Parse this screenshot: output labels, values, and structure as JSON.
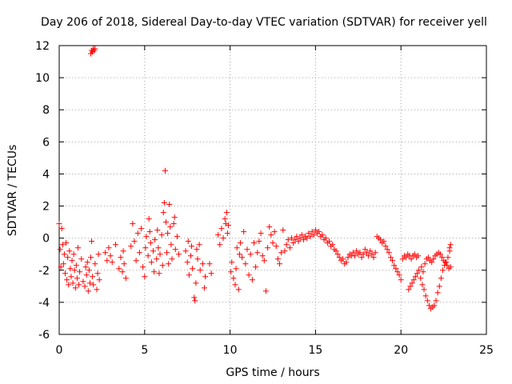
{
  "chart_data": {
    "type": "scatter",
    "title": "Day 206 of 2018, Sidereal Day-to-day VTEC variation (SDTVAR) for receiver yell",
    "xlabel": "GPS time / hours",
    "ylabel": "SDTVAR / TECUs",
    "xlim": [
      0,
      25
    ],
    "ylim": [
      -6,
      12
    ],
    "xticks": [
      0,
      5,
      10,
      15,
      20,
      25
    ],
    "yticks": [
      -6,
      -4,
      -2,
      0,
      2,
      4,
      6,
      8,
      10,
      12
    ],
    "grid": true,
    "marker": "+",
    "color": "#ff0000",
    "series": [
      {
        "name": "SDTVAR",
        "points": [
          [
            0.0,
            0.9
          ],
          [
            0.05,
            -0.7
          ],
          [
            0.1,
            -1.8
          ],
          [
            0.15,
            0.6
          ],
          [
            0.2,
            -0.4
          ],
          [
            0.25,
            -1.6
          ],
          [
            0.3,
            -1.0
          ],
          [
            0.35,
            -2.2
          ],
          [
            0.4,
            -0.3
          ],
          [
            0.45,
            -2.6
          ],
          [
            0.5,
            -1.2
          ],
          [
            0.55,
            -2.9
          ],
          [
            0.6,
            -0.8
          ],
          [
            0.65,
            -1.9
          ],
          [
            0.7,
            -2.4
          ],
          [
            0.75,
            -1.4
          ],
          [
            0.8,
            -2.8
          ],
          [
            0.85,
            -1.0
          ],
          [
            0.9,
            -2.0
          ],
          [
            0.95,
            -3.1
          ],
          [
            1.0,
            -1.7
          ],
          [
            1.05,
            -2.5
          ],
          [
            1.1,
            -0.6
          ],
          [
            1.15,
            -2.9
          ],
          [
            1.2,
            -2.1
          ],
          [
            1.3,
            -1.3
          ],
          [
            1.4,
            -2.7
          ],
          [
            1.5,
            -3.0
          ],
          [
            1.55,
            -1.8
          ],
          [
            1.6,
            -2.3
          ],
          [
            1.65,
            -1.5
          ],
          [
            1.7,
            -3.3
          ],
          [
            1.75,
            -2.0
          ],
          [
            1.8,
            -2.8
          ],
          [
            1.85,
            -1.2
          ],
          [
            1.9,
            -0.2
          ],
          [
            1.95,
            -2.4
          ],
          [
            2.0,
            -2.9
          ],
          [
            2.1,
            -1.6
          ],
          [
            2.2,
            -3.2
          ],
          [
            2.25,
            -2.2
          ],
          [
            2.3,
            -1.0
          ],
          [
            2.35,
            -2.6
          ],
          [
            1.85,
            11.5
          ],
          [
            1.9,
            11.7
          ],
          [
            1.95,
            11.6
          ],
          [
            2.0,
            11.8
          ],
          [
            2.05,
            11.7
          ],
          [
            2.1,
            11.8
          ],
          [
            2.7,
            -0.9
          ],
          [
            2.8,
            -1.4
          ],
          [
            2.9,
            -0.6
          ],
          [
            3.0,
            -1.1
          ],
          [
            3.1,
            -1.5
          ],
          [
            3.3,
            -0.4
          ],
          [
            3.5,
            -1.9
          ],
          [
            3.6,
            -1.2
          ],
          [
            3.7,
            -2.1
          ],
          [
            3.75,
            -0.8
          ],
          [
            3.8,
            -1.6
          ],
          [
            3.9,
            -2.5
          ],
          [
            4.2,
            -0.5
          ],
          [
            4.3,
            0.9
          ],
          [
            4.4,
            -0.2
          ],
          [
            4.5,
            -1.4
          ],
          [
            4.6,
            0.3
          ],
          [
            4.7,
            -0.9
          ],
          [
            4.8,
            0.6
          ],
          [
            4.9,
            -1.8
          ],
          [
            5.0,
            -2.4
          ],
          [
            5.05,
            -0.6
          ],
          [
            5.1,
            0.1
          ],
          [
            5.2,
            -1.1
          ],
          [
            5.25,
            1.2
          ],
          [
            5.3,
            0.4
          ],
          [
            5.35,
            -0.3
          ],
          [
            5.4,
            -1.5
          ],
          [
            5.5,
            -0.8
          ],
          [
            5.55,
            -2.1
          ],
          [
            5.6,
            -0.1
          ],
          [
            5.7,
            -1.3
          ],
          [
            5.75,
            0.5
          ],
          [
            5.8,
            -0.6
          ],
          [
            5.85,
            -2.2
          ],
          [
            5.9,
            -1.0
          ],
          [
            6.0,
            0.2
          ],
          [
            6.05,
            -1.7
          ],
          [
            6.1,
            1.6
          ],
          [
            6.15,
            2.2
          ],
          [
            6.2,
            4.2
          ],
          [
            6.25,
            1.0
          ],
          [
            6.3,
            -0.9
          ],
          [
            6.35,
            0.3
          ],
          [
            6.4,
            -1.6
          ],
          [
            6.45,
            2.1
          ],
          [
            6.5,
            0.7
          ],
          [
            6.55,
            -0.4
          ],
          [
            6.6,
            -1.3
          ],
          [
            6.7,
            0.9
          ],
          [
            6.75,
            1.3
          ],
          [
            6.8,
            -0.7
          ],
          [
            6.9,
            0.1
          ],
          [
            7.0,
            -1.0
          ],
          [
            7.4,
            -0.8
          ],
          [
            7.5,
            -1.5
          ],
          [
            7.55,
            -0.2
          ],
          [
            7.6,
            -2.3
          ],
          [
            7.7,
            -1.1
          ],
          [
            7.75,
            -0.5
          ],
          [
            7.8,
            -1.9
          ],
          [
            7.9,
            -3.7
          ],
          [
            7.95,
            -3.9
          ],
          [
            8.0,
            -2.8
          ],
          [
            8.05,
            -0.7
          ],
          [
            8.1,
            -1.3
          ],
          [
            8.2,
            -0.4
          ],
          [
            8.25,
            -2.0
          ],
          [
            8.4,
            -1.6
          ],
          [
            8.5,
            -3.1
          ],
          [
            8.55,
            -2.4
          ],
          [
            8.8,
            -1.6
          ],
          [
            8.9,
            -2.2
          ],
          [
            9.3,
            0.2
          ],
          [
            9.4,
            -0.4
          ],
          [
            9.5,
            0.6
          ],
          [
            9.6,
            0.0
          ],
          [
            9.7,
            1.2
          ],
          [
            9.75,
            0.9
          ],
          [
            9.8,
            1.6
          ],
          [
            9.85,
            0.3
          ],
          [
            9.9,
            0.8
          ],
          [
            10.05,
            -2.1
          ],
          [
            10.1,
            -1.5
          ],
          [
            10.2,
            -2.5
          ],
          [
            10.3,
            -2.9
          ],
          [
            10.35,
            -1.9
          ],
          [
            10.4,
            -0.6
          ],
          [
            10.5,
            -3.2
          ],
          [
            10.55,
            -1.0
          ],
          [
            10.6,
            -0.3
          ],
          [
            10.7,
            -1.2
          ],
          [
            10.8,
            0.4
          ],
          [
            10.9,
            -1.6
          ],
          [
            11.0,
            -0.7
          ],
          [
            11.1,
            -2.3
          ],
          [
            11.2,
            -1.0
          ],
          [
            11.3,
            -2.6
          ],
          [
            11.4,
            -0.3
          ],
          [
            11.5,
            -1.8
          ],
          [
            11.6,
            -0.9
          ],
          [
            11.7,
            -0.2
          ],
          [
            11.8,
            0.3
          ],
          [
            11.9,
            -1.1
          ],
          [
            12.0,
            -1.4
          ],
          [
            12.1,
            -3.3
          ],
          [
            12.2,
            -0.6
          ],
          [
            12.3,
            0.7
          ],
          [
            12.4,
            0.2
          ],
          [
            12.5,
            -0.3
          ],
          [
            12.6,
            0.4
          ],
          [
            12.7,
            -0.5
          ],
          [
            12.8,
            -1.3
          ],
          [
            12.9,
            -1.6
          ],
          [
            13.0,
            -0.9
          ],
          [
            13.1,
            0.5
          ],
          [
            13.2,
            -0.8
          ],
          [
            13.3,
            -0.4
          ],
          [
            13.4,
            -0.1
          ],
          [
            13.5,
            -0.6
          ],
          [
            13.6,
            0.0
          ],
          [
            13.7,
            -0.3
          ],
          [
            13.8,
            -0.1
          ],
          [
            13.9,
            0.1
          ],
          [
            14.0,
            -0.2
          ],
          [
            14.1,
            0.0
          ],
          [
            14.2,
            0.2
          ],
          [
            14.3,
            -0.1
          ],
          [
            14.4,
            0.1
          ],
          [
            14.5,
            0.0
          ],
          [
            14.6,
            0.3
          ],
          [
            14.7,
            0.1
          ],
          [
            14.8,
            0.4
          ],
          [
            14.9,
            0.2
          ],
          [
            15.0,
            0.5
          ],
          [
            15.1,
            0.3
          ],
          [
            15.2,
            0.4
          ],
          [
            15.3,
            0.1
          ],
          [
            15.4,
            0.2
          ],
          [
            15.5,
            -0.1
          ],
          [
            15.6,
            0.0
          ],
          [
            15.7,
            -0.3
          ],
          [
            15.8,
            -0.2
          ],
          [
            15.9,
            -0.5
          ],
          [
            16.0,
            -0.4
          ],
          [
            16.1,
            -0.7
          ],
          [
            16.2,
            -0.8
          ],
          [
            16.3,
            -1.0
          ],
          [
            16.4,
            -1.2
          ],
          [
            16.5,
            -1.4
          ],
          [
            16.6,
            -1.3
          ],
          [
            16.7,
            -1.6
          ],
          [
            16.8,
            -1.5
          ],
          [
            16.9,
            -1.2
          ],
          [
            17.0,
            -1.0
          ],
          [
            17.1,
            -1.1
          ],
          [
            17.2,
            -0.9
          ],
          [
            17.3,
            -1.1
          ],
          [
            17.4,
            -0.8
          ],
          [
            17.5,
            -1.0
          ],
          [
            17.6,
            -0.9
          ],
          [
            17.7,
            -1.2
          ],
          [
            17.8,
            -1.0
          ],
          [
            17.9,
            -0.7
          ],
          [
            18.0,
            -0.9
          ],
          [
            18.1,
            -1.1
          ],
          [
            18.2,
            -0.8
          ],
          [
            18.3,
            -1.0
          ],
          [
            18.4,
            -1.2
          ],
          [
            18.5,
            -0.9
          ],
          [
            18.6,
            0.1
          ],
          [
            18.7,
            0.0
          ],
          [
            18.8,
            -0.1
          ],
          [
            18.9,
            -0.3
          ],
          [
            19.0,
            -0.2
          ],
          [
            19.1,
            -0.5
          ],
          [
            19.2,
            -0.7
          ],
          [
            19.3,
            -0.9
          ],
          [
            19.4,
            -1.2
          ],
          [
            19.5,
            -1.4
          ],
          [
            19.6,
            -1.7
          ],
          [
            19.7,
            -1.9
          ],
          [
            19.8,
            -2.1
          ],
          [
            19.9,
            -2.3
          ],
          [
            20.0,
            -2.6
          ],
          [
            20.1,
            -1.3
          ],
          [
            20.2,
            -1.1
          ],
          [
            20.3,
            -1.2
          ],
          [
            20.4,
            -1.0
          ],
          [
            20.5,
            -1.1
          ],
          [
            20.6,
            -1.3
          ],
          [
            20.7,
            -1.1
          ],
          [
            20.8,
            -1.0
          ],
          [
            20.9,
            -1.2
          ],
          [
            21.0,
            -1.1
          ],
          [
            20.45,
            -3.2
          ],
          [
            20.55,
            -3.0
          ],
          [
            20.65,
            -2.8
          ],
          [
            20.75,
            -2.6
          ],
          [
            20.85,
            -2.4
          ],
          [
            20.95,
            -2.2
          ],
          [
            21.05,
            -2.0
          ],
          [
            21.15,
            -2.5
          ],
          [
            21.25,
            -2.9
          ],
          [
            21.35,
            -3.2
          ],
          [
            21.45,
            -3.6
          ],
          [
            21.55,
            -3.9
          ],
          [
            21.65,
            -4.2
          ],
          [
            21.75,
            -4.4
          ],
          [
            21.85,
            -4.3
          ],
          [
            21.95,
            -4.2
          ],
          [
            22.05,
            -3.9
          ],
          [
            22.15,
            -3.4
          ],
          [
            22.25,
            -3.0
          ],
          [
            22.35,
            -2.5
          ],
          [
            22.45,
            -2.0
          ],
          [
            22.55,
            -1.7
          ],
          [
            22.65,
            -1.5
          ],
          [
            22.75,
            -1.2
          ],
          [
            22.85,
            -0.8
          ],
          [
            21.5,
            -1.3
          ],
          [
            21.6,
            -1.2
          ],
          [
            21.7,
            -1.4
          ],
          [
            21.8,
            -1.5
          ],
          [
            21.9,
            -1.3
          ],
          [
            22.0,
            -1.1
          ],
          [
            22.1,
            -1.0
          ],
          [
            22.2,
            -0.9
          ],
          [
            22.3,
            -1.0
          ],
          [
            22.4,
            -1.2
          ],
          [
            22.5,
            -1.4
          ],
          [
            22.6,
            -1.5
          ],
          [
            22.7,
            -1.7
          ],
          [
            22.8,
            -1.9
          ],
          [
            22.9,
            -1.8
          ],
          [
            21.2,
            -1.8
          ],
          [
            21.3,
            -2.1
          ],
          [
            21.4,
            -1.6
          ],
          [
            22.85,
            -0.6
          ],
          [
            22.9,
            -0.4
          ]
        ]
      }
    ]
  }
}
